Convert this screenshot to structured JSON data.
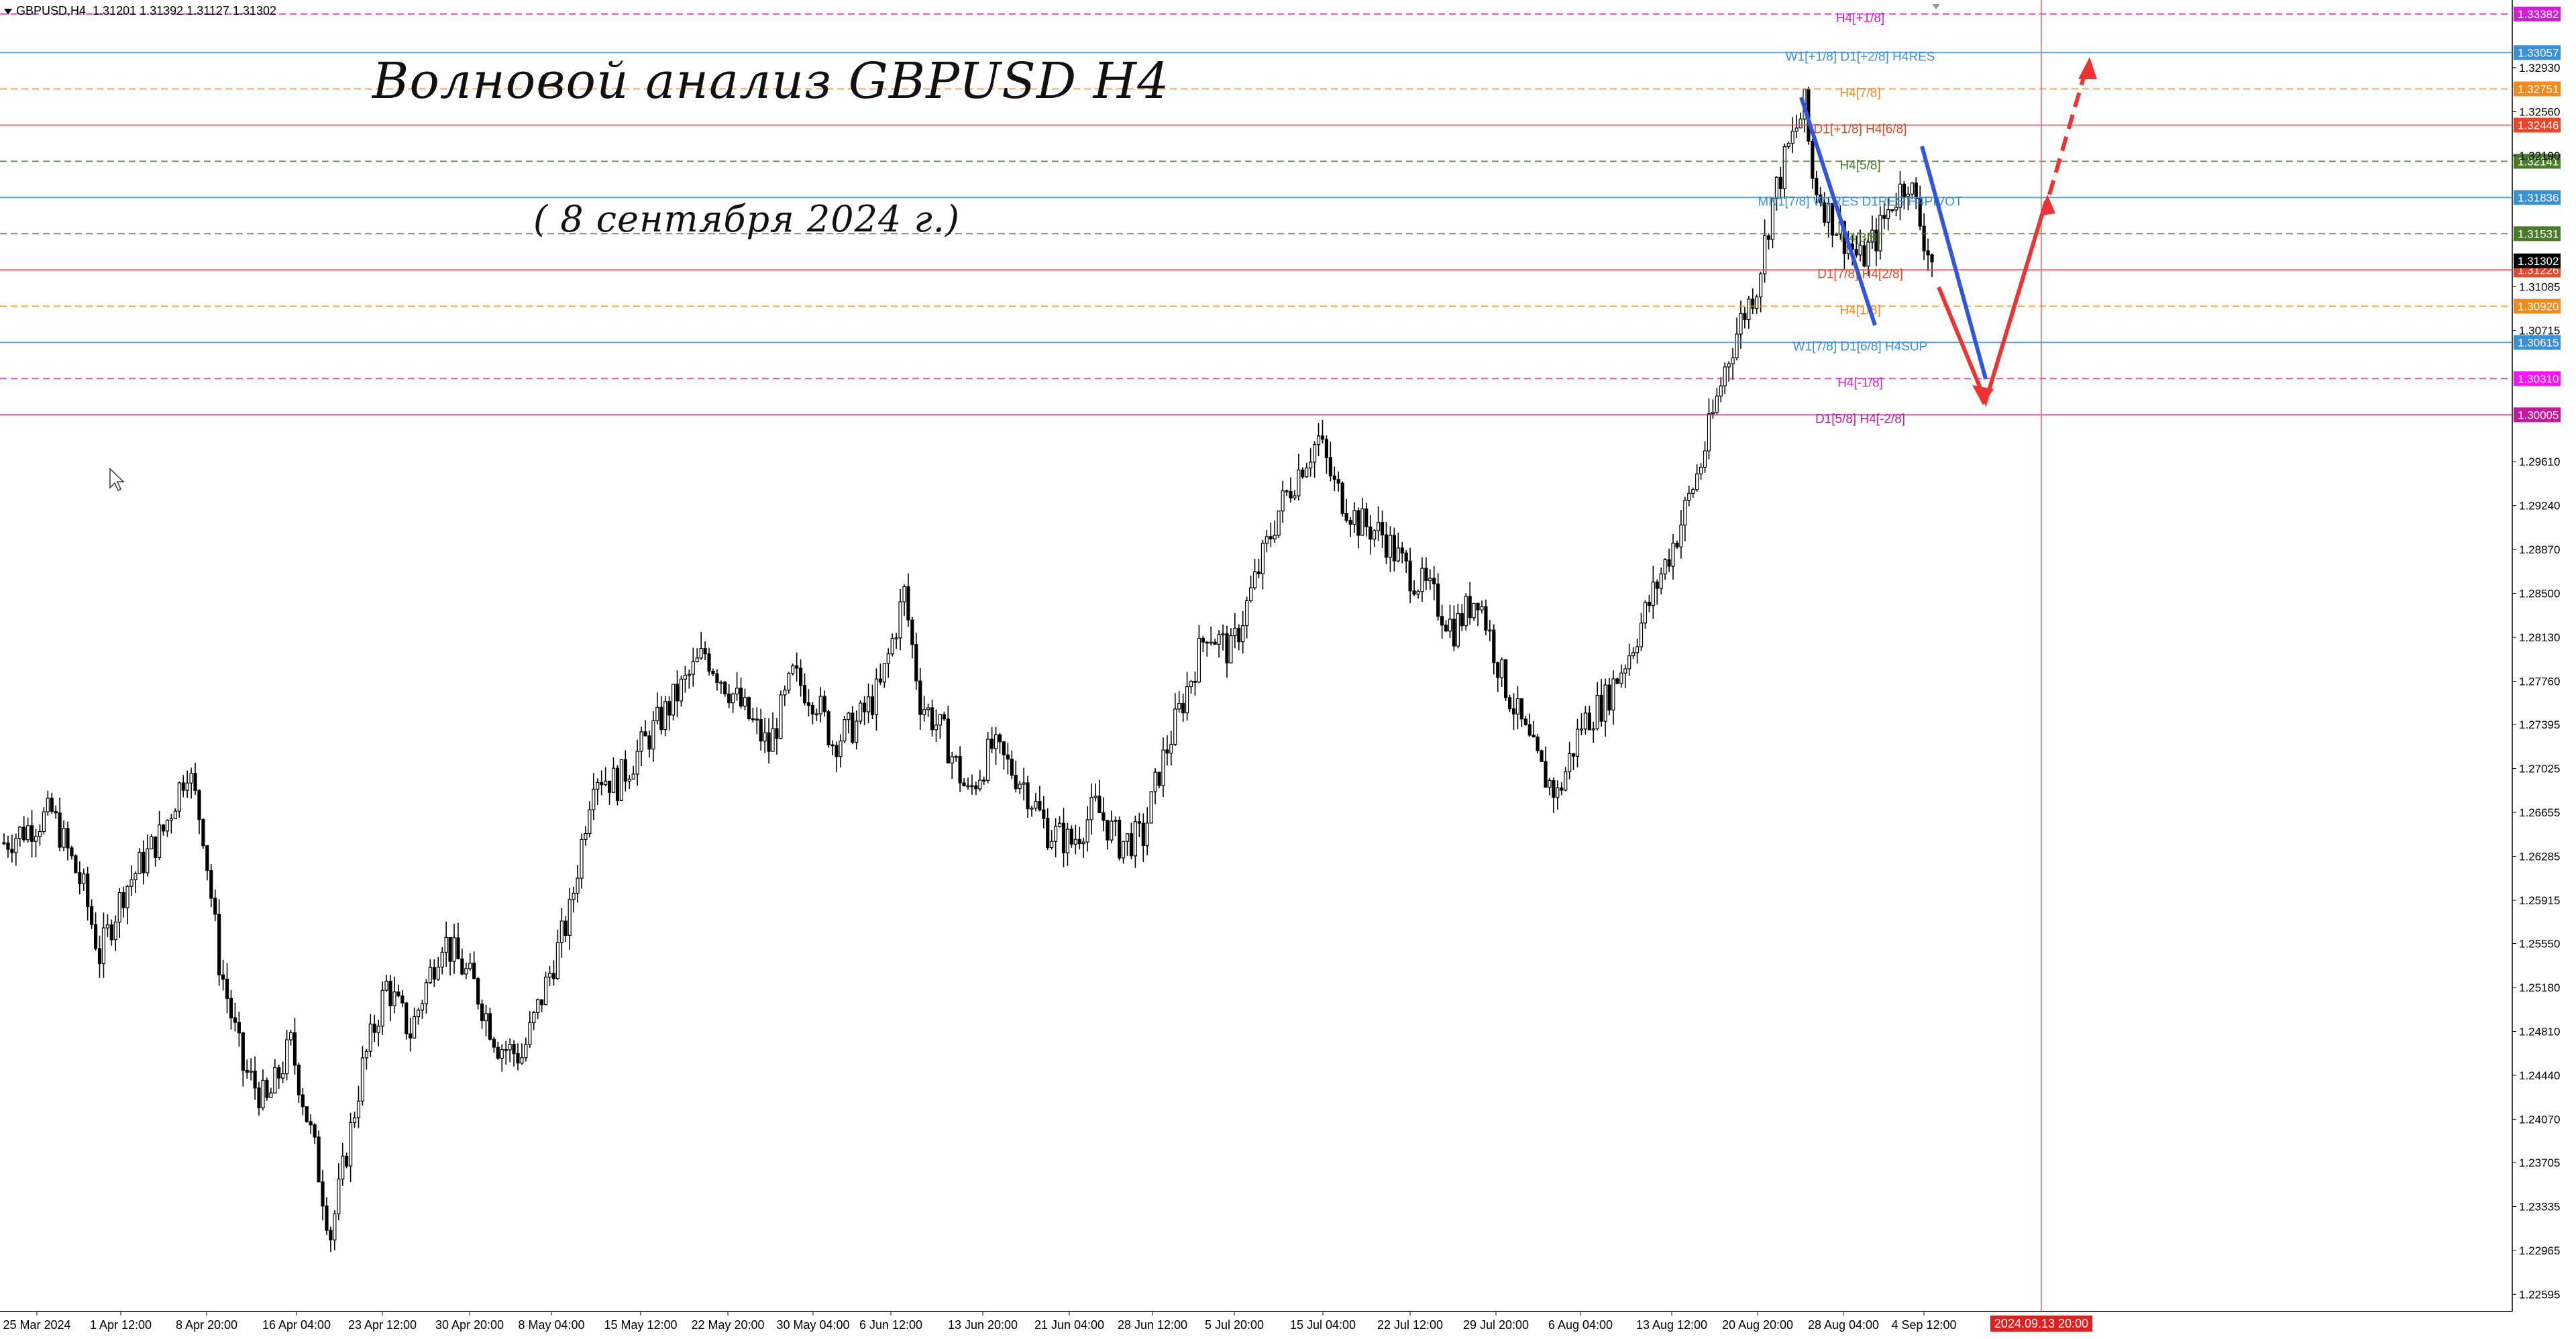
{
  "header": {
    "symbol": "GBPUSD,H4",
    "ohlc": "1.31201 1.31392 1.31127 1.31302"
  },
  "annotations": {
    "title": "Волновой анализ GBPUSD H4",
    "date": "( 8 сентября 2024 г.)"
  },
  "chart_data": {
    "type": "candlestick",
    "symbol": "GBPUSD",
    "timeframe": "H4",
    "ylim": [
      1.2245,
      1.335
    ],
    "y_ticks": [
      "1.32930",
      "1.32560",
      "1.32190",
      "1.31085",
      "1.30715",
      "1.29610",
      "1.29240",
      "1.28870",
      "1.28500",
      "1.28130",
      "1.27760",
      "1.27395",
      "1.27025",
      "1.26655",
      "1.26285",
      "1.25915",
      "1.25550",
      "1.25180",
      "1.24810",
      "1.24440",
      "1.24070",
      "1.23705",
      "1.23335",
      "1.22965",
      "1.22595"
    ],
    "x_ticks": [
      "25 Mar 2024",
      "1 Apr 12:00",
      "8 Apr 20:00",
      "16 Apr 04:00",
      "23 Apr 12:00",
      "30 Apr 20:00",
      "8 May 04:00",
      "15 May 12:00",
      "22 May 20:00",
      "30 May 04:00",
      "6 Jun 12:00",
      "13 Jun 20:00",
      "21 Jun 04:00",
      "28 Jun 12:00",
      "5 Jul 20:00",
      "15 Jul 04:00",
      "22 Jul 12:00",
      "29 Jul 20:00",
      "6 Aug 04:00",
      "13 Aug 12:00",
      "20 Aug 20:00",
      "28 Aug 04:00",
      "4 Sep 12:00"
    ],
    "x_highlight": "2024.09.13 20:00",
    "price_path": [
      [
        0,
        1.264
      ],
      [
        12,
        1.2665
      ],
      [
        20,
        1.26
      ],
      [
        24,
        1.2545
      ],
      [
        30,
        1.26
      ],
      [
        40,
        1.265
      ],
      [
        46,
        1.2705
      ],
      [
        50,
        1.265
      ],
      [
        54,
        1.254
      ],
      [
        60,
        1.245
      ],
      [
        66,
        1.242
      ],
      [
        72,
        1.247
      ],
      [
        78,
        1.238
      ],
      [
        82,
        1.231
      ],
      [
        86,
        1.238
      ],
      [
        90,
        1.245
      ],
      [
        96,
        1.252
      ],
      [
        102,
        1.248
      ],
      [
        110,
        1.256
      ],
      [
        118,
        1.252
      ],
      [
        124,
        1.247
      ],
      [
        130,
        1.246
      ],
      [
        136,
        1.252
      ],
      [
        142,
        1.258
      ],
      [
        148,
        1.27
      ],
      [
        154,
        1.269
      ],
      [
        160,
        1.272
      ],
      [
        168,
        1.276
      ],
      [
        176,
        1.28
      ],
      [
        184,
        1.276
      ],
      [
        192,
        1.272
      ],
      [
        198,
        1.278
      ],
      [
        204,
        1.276
      ],
      [
        208,
        1.2725
      ],
      [
        214,
        1.274
      ],
      [
        220,
        1.277
      ],
      [
        226,
        1.285
      ],
      [
        230,
        1.276
      ],
      [
        236,
        1.273
      ],
      [
        242,
        1.268
      ],
      [
        248,
        1.272
      ],
      [
        256,
        1.269
      ],
      [
        262,
        1.265
      ],
      [
        268,
        1.264
      ],
      [
        274,
        1.267
      ],
      [
        280,
        1.264
      ],
      [
        286,
        1.2645
      ],
      [
        290,
        1.27
      ],
      [
        296,
        1.276
      ],
      [
        302,
        1.282
      ],
      [
        308,
        1.28
      ],
      [
        314,
        1.286
      ],
      [
        320,
        1.292
      ],
      [
        326,
        1.296
      ],
      [
        330,
        1.298
      ],
      [
        334,
        1.294
      ],
      [
        340,
        1.291
      ],
      [
        346,
        1.29
      ],
      [
        352,
        1.287
      ],
      [
        358,
        1.285
      ],
      [
        364,
        1.282
      ],
      [
        370,
        1.285
      ],
      [
        376,
        1.278
      ],
      [
        382,
        1.273
      ],
      [
        386,
        1.27
      ],
      [
        390,
        1.268
      ],
      [
        396,
        1.274
      ],
      [
        402,
        1.276
      ],
      [
        408,
        1.28
      ],
      [
        414,
        1.285
      ],
      [
        420,
        1.29
      ],
      [
        426,
        1.296
      ],
      [
        432,
        1.304
      ],
      [
        436,
        1.308
      ],
      [
        440,
        1.311
      ],
      [
        444,
        1.318
      ],
      [
        448,
        1.3225
      ],
      [
        452,
        1.326
      ],
      [
        454,
        1.32
      ],
      [
        458,
        1.317
      ],
      [
        462,
        1.315
      ],
      [
        466,
        1.313
      ],
      [
        470,
        1.315
      ],
      [
        474,
        1.318
      ],
      [
        478,
        1.32
      ],
      [
        482,
        1.315
      ],
      [
        484,
        1.313
      ]
    ],
    "grid": false
  },
  "levels": [
    {
      "label": "H4[+1/8]",
      "price": "1.33382",
      "color": "#d21ed2",
      "dash": true,
      "badge_bg": "#d21ed2",
      "badge_fg": "#ffffff"
    },
    {
      "label": "W1[+1/8] D1[+2/8] H4RES",
      "price": "1.33057",
      "color": "#3a8fd6",
      "dash": false,
      "badge_bg": "#3a8fd6",
      "badge_fg": "#ffffff"
    },
    {
      "label": "H4[7/8]",
      "price": "1.32751",
      "color": "#f08a1e",
      "dash": true,
      "badge_bg": "#f08a1e",
      "badge_fg": "#ffffff"
    },
    {
      "label": "D1[+1/8] H4[6/8]",
      "price": "1.32446",
      "color": "#e8462a",
      "dash": false,
      "badge_bg": "#e8462a",
      "badge_fg": "#ffffff"
    },
    {
      "label": "H4[5/8]",
      "price": "1.32141",
      "color": "#4a7a2a",
      "dash": true,
      "badge_bg": "#4a7a2a",
      "badge_fg": "#ffffff"
    },
    {
      "label": "MN1[7/8] W1RES D1RES H4PIVOT",
      "price": "1.31836",
      "color": "#3a8fd6",
      "dash": false,
      "badge_bg": "#3a8fd6",
      "badge_fg": "#ffffff"
    },
    {
      "label": "H4[3/8]",
      "price": "1.31531",
      "color": "#4a7a2a",
      "dash": true,
      "badge_bg": "#4a7a2a",
      "badge_fg": "#ffffff"
    },
    {
      "label": "D1[7/8] H4[2/8]",
      "price": "1.31226",
      "color": "#e8462a",
      "dash": false,
      "badge_bg": "#e8462a",
      "badge_fg": "#ffffff"
    },
    {
      "label": "H4[1/8]",
      "price": "1.30920",
      "color": "#f08a1e",
      "dash": true,
      "badge_bg": "#f08a1e",
      "badge_fg": "#ffffff"
    },
    {
      "label": "W1[7/8] D1[6/8] H4SUP",
      "price": "1.30615",
      "color": "#3a8fd6",
      "dash": false,
      "badge_bg": "#3a8fd6",
      "badge_fg": "#ffffff"
    },
    {
      "label": "H4[-1/8]",
      "price": "1.30310",
      "color": "#d21ed2",
      "dash": true,
      "badge_bg": "#ff10ff",
      "badge_fg": "#ffffff"
    },
    {
      "label": "D1[5/8] H4[-2/8]",
      "price": "1.30005",
      "color": "#c21a9a",
      "dash": false,
      "badge_bg": "#c21a9a",
      "badge_fg": "#ffffff"
    }
  ],
  "current_price": "1.31302",
  "colors": {
    "candle": "#000000",
    "wave_blue": "#3355dd",
    "forecast_red": "#ee3333",
    "vline": "#e06060"
  }
}
